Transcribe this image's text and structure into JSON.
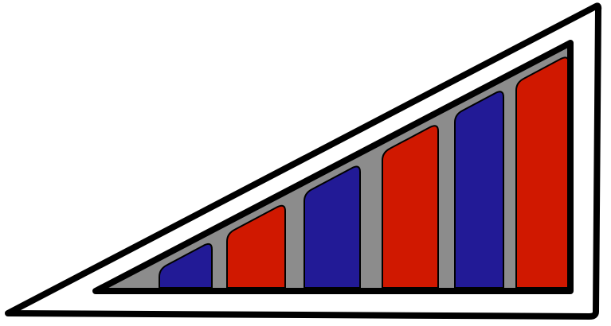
{
  "graphic": {
    "kind": "wedge-logo",
    "colors": {
      "outline": "#000000",
      "frame_fill": "#ffffff",
      "panel_fill": "#8c8c8c",
      "blue": "#221a96",
      "red": "#d01800"
    },
    "bars": [
      {
        "id": "bar-1",
        "color": "blue"
      },
      {
        "id": "bar-2",
        "color": "red"
      },
      {
        "id": "bar-3",
        "color": "blue"
      },
      {
        "id": "bar-4",
        "color": "red"
      },
      {
        "id": "bar-5",
        "color": "blue"
      },
      {
        "id": "bar-6",
        "color": "red"
      }
    ]
  }
}
